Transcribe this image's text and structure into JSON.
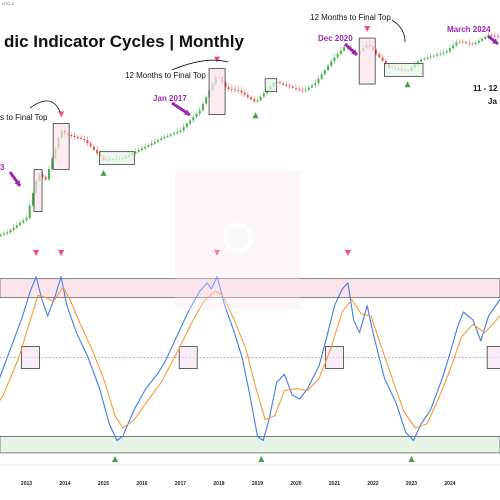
{
  "title": "dic Indicator Cycles | Monthly",
  "timezone": "UTC-4",
  "annotations": [
    {
      "text": "12 Months to Final Top"
    },
    {
      "text": "12 Months to Final Top"
    },
    {
      "text": "s to Final Top"
    },
    {
      "text": "11 - 12"
    },
    {
      "text": "Ja"
    }
  ],
  "date_labels": [
    {
      "text": "Jan 2017"
    },
    {
      "text": "Dec 2020"
    },
    {
      "text": "March 2024"
    },
    {
      "text": "3"
    }
  ],
  "colors": {
    "fast_line": "#3f7de8",
    "slow_line": "#f39a3b",
    "bull_candle": "#4caf50",
    "bear_candle": "#ef5350",
    "top_marker": "#f0506e",
    "bottom_marker": "#43a047",
    "callout_arrow": "#9c27b0",
    "overbought_zone": "#fbe4ea",
    "oversold_zone": "#e8f3e8",
    "midline": "#c040c0"
  },
  "chart_data": {
    "type": "line",
    "title": "dic Indicator Cycles | Monthly",
    "x_ticks": [
      "2013",
      "2014",
      "2015",
      "2016",
      "2017",
      "2018",
      "2019",
      "2020",
      "2021",
      "2022",
      "2023",
      "2024"
    ],
    "x_range": [
      2012.0,
      2025.3
    ],
    "price_panel": {
      "type": "candlestick",
      "scale": "log",
      "approximate_close": [
        [
          2012.0,
          5
        ],
        [
          2012.5,
          7
        ],
        [
          2013.0,
          14
        ],
        [
          2013.3,
          120
        ],
        [
          2013.5,
          90
        ],
        [
          2013.9,
          1000
        ],
        [
          2014.0,
          800
        ],
        [
          2014.5,
          600
        ],
        [
          2015.0,
          230
        ],
        [
          2015.5,
          250
        ],
        [
          2016.0,
          400
        ],
        [
          2016.5,
          650
        ],
        [
          2017.0,
          950
        ],
        [
          2017.5,
          2500
        ],
        [
          2017.95,
          14000
        ],
        [
          2018.2,
          7000
        ],
        [
          2018.5,
          6500
        ],
        [
          2018.95,
          3700
        ],
        [
          2019.45,
          10000
        ],
        [
          2019.95,
          7200
        ],
        [
          2020.2,
          6400
        ],
        [
          2020.5,
          9200
        ],
        [
          2020.95,
          29000
        ],
        [
          2021.3,
          58000
        ],
        [
          2021.55,
          35000
        ],
        [
          2021.85,
          61000
        ],
        [
          2022.4,
          20000
        ],
        [
          2022.9,
          16500
        ],
        [
          2023.2,
          28000
        ],
        [
          2023.9,
          42000
        ],
        [
          2024.2,
          70000
        ],
        [
          2024.6,
          60000
        ],
        [
          2025.0,
          95000
        ],
        [
          2025.3,
          85000
        ]
      ],
      "tops": [
        2013.9,
        2017.95,
        2021.85
      ],
      "bottoms": [
        2015.0,
        2018.95,
        2022.9
      ],
      "consolidation_boxes": [
        {
          "from": 2014.9,
          "to": 2015.8
        },
        {
          "from": 2019.2,
          "to": 2019.5
        },
        {
          "from": 2022.3,
          "to": 2023.3
        }
      ]
    },
    "series": [
      {
        "values": [
          [
            2012.0,
            40
          ],
          [
            2012.3,
            50
          ],
          [
            2012.6,
            65
          ],
          [
            2012.9,
            80
          ],
          [
            2013.1,
            92
          ],
          [
            2013.25,
            99
          ],
          [
            2013.4,
            88
          ],
          [
            2013.55,
            80
          ],
          [
            2013.75,
            90
          ],
          [
            2013.9,
            99
          ],
          [
            2014.05,
            85
          ],
          [
            2014.3,
            72
          ],
          [
            2014.6,
            60
          ],
          [
            2014.9,
            45
          ],
          [
            2015.15,
            28
          ],
          [
            2015.35,
            20
          ],
          [
            2015.5,
            22
          ],
          [
            2015.8,
            35
          ],
          [
            2016.1,
            45
          ],
          [
            2016.4,
            52
          ],
          [
            2016.6,
            58
          ],
          [
            2016.9,
            70
          ],
          [
            2017.2,
            82
          ],
          [
            2017.5,
            92
          ],
          [
            2017.7,
            96
          ],
          [
            2017.8,
            93
          ],
          [
            2017.95,
            99
          ],
          [
            2018.15,
            85
          ],
          [
            2018.4,
            72
          ],
          [
            2018.6,
            60
          ],
          [
            2018.8,
            42
          ],
          [
            2019.0,
            22
          ],
          [
            2019.15,
            20
          ],
          [
            2019.3,
            30
          ],
          [
            2019.5,
            48
          ],
          [
            2019.7,
            52
          ],
          [
            2019.9,
            42
          ],
          [
            2020.1,
            40
          ],
          [
            2020.3,
            45
          ],
          [
            2020.6,
            56
          ],
          [
            2020.8,
            70
          ],
          [
            2021.0,
            85
          ],
          [
            2021.2,
            93
          ],
          [
            2021.35,
            96
          ],
          [
            2021.5,
            78
          ],
          [
            2021.65,
            72
          ],
          [
            2021.85,
            85
          ],
          [
            2022.0,
            72
          ],
          [
            2022.3,
            50
          ],
          [
            2022.6,
            38
          ],
          [
            2022.85,
            24
          ],
          [
            2023.05,
            20
          ],
          [
            2023.25,
            28
          ],
          [
            2023.5,
            35
          ],
          [
            2023.8,
            50
          ],
          [
            2024.0,
            62
          ],
          [
            2024.2,
            75
          ],
          [
            2024.35,
            82
          ],
          [
            2024.6,
            78
          ],
          [
            2024.8,
            68
          ],
          [
            2025.0,
            80
          ],
          [
            2025.3,
            88
          ]
        ]
      },
      {
        "values": [
          [
            2012.0,
            30
          ],
          [
            2012.4,
            42
          ],
          [
            2012.8,
            60
          ],
          [
            2013.1,
            78
          ],
          [
            2013.3,
            90
          ],
          [
            2013.5,
            89
          ],
          [
            2013.7,
            87
          ],
          [
            2013.95,
            94
          ],
          [
            2014.15,
            87
          ],
          [
            2014.4,
            76
          ],
          [
            2014.7,
            64
          ],
          [
            2015.0,
            50
          ],
          [
            2015.3,
            32
          ],
          [
            2015.5,
            26
          ],
          [
            2015.8,
            30
          ],
          [
            2016.1,
            38
          ],
          [
            2016.5,
            48
          ],
          [
            2016.9,
            62
          ],
          [
            2017.3,
            77
          ],
          [
            2017.6,
            87
          ],
          [
            2017.9,
            92
          ],
          [
            2018.1,
            90
          ],
          [
            2018.4,
            78
          ],
          [
            2018.7,
            64
          ],
          [
            2018.95,
            46
          ],
          [
            2019.2,
            30
          ],
          [
            2019.45,
            32
          ],
          [
            2019.7,
            44
          ],
          [
            2020.0,
            45
          ],
          [
            2020.3,
            44
          ],
          [
            2020.6,
            50
          ],
          [
            2020.9,
            64
          ],
          [
            2021.2,
            82
          ],
          [
            2021.45,
            88
          ],
          [
            2021.7,
            81
          ],
          [
            2021.95,
            80
          ],
          [
            2022.2,
            66
          ],
          [
            2022.5,
            50
          ],
          [
            2022.8,
            34
          ],
          [
            2023.1,
            26
          ],
          [
            2023.4,
            28
          ],
          [
            2023.7,
            40
          ],
          [
            2024.0,
            54
          ],
          [
            2024.3,
            70
          ],
          [
            2024.6,
            76
          ],
          [
            2024.9,
            72
          ],
          [
            2025.3,
            80
          ]
        ]
      }
    ],
    "y_range": [
      13,
      108
    ],
    "overbought_zone": [
      89,
      98
    ],
    "oversold_zone": [
      14,
      22
    ],
    "midline": 60,
    "indicator_tops": [
      2013.9,
      2017.95,
      2021.35
    ],
    "indicator_bottoms": [
      2015.3,
      2019.1,
      2023.0
    ],
    "cross_boxes": [
      2013.1,
      2017.2,
      2021.0,
      2025.2
    ],
    "grid": false,
    "legend": "none"
  }
}
